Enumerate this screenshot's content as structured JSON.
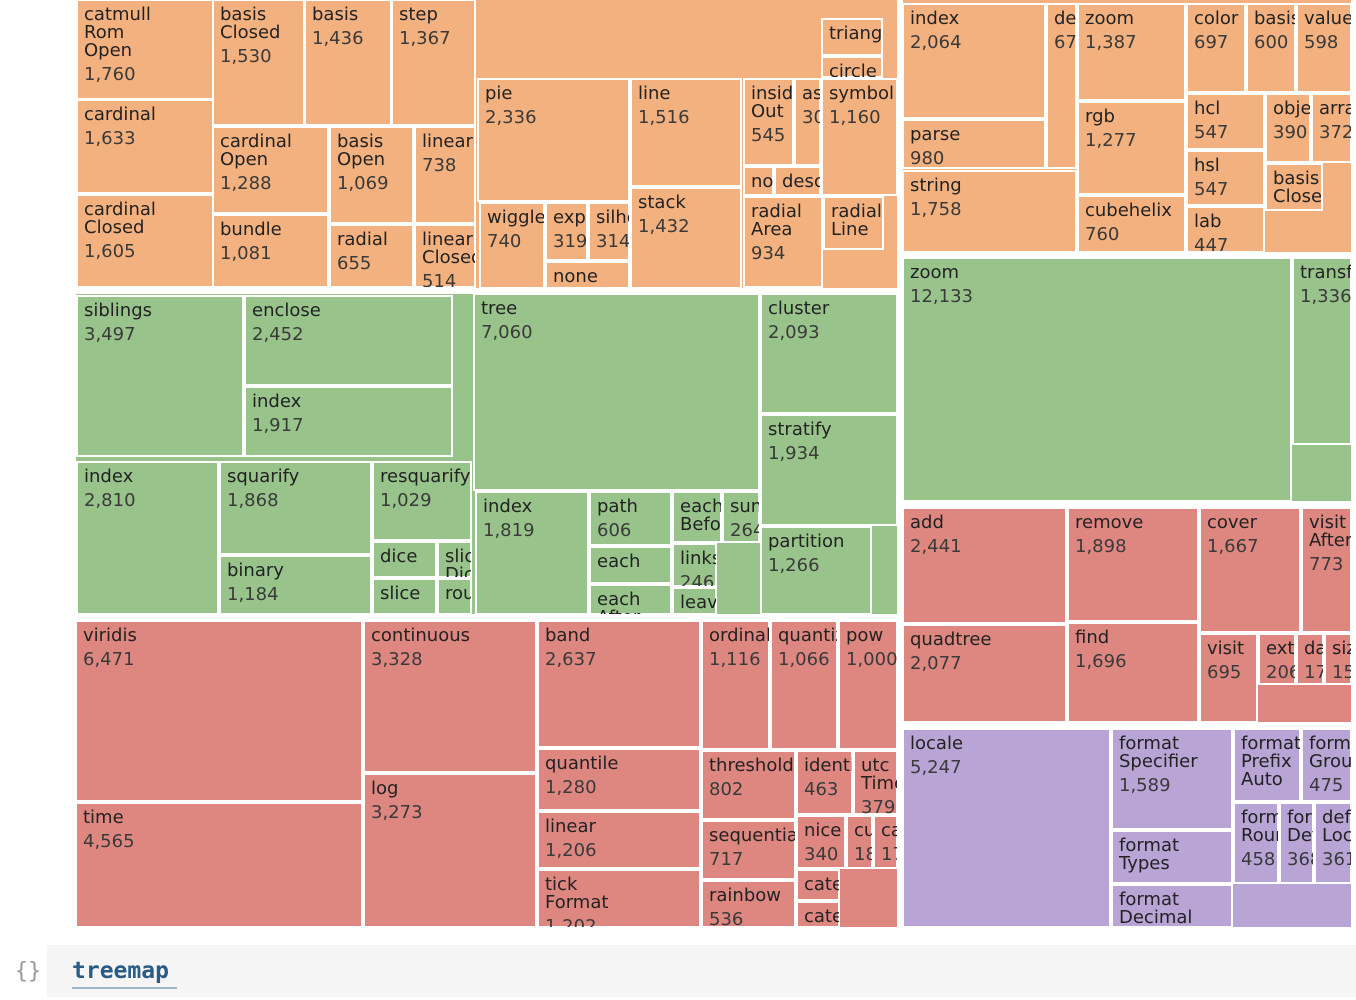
{
  "chart_data": {
    "type": "treemap",
    "series": [
      {
        "color": "#f3b17f",
        "labels": [
          "catmull Rom Open",
          "cardinal",
          "cardinal Closed",
          "basis Closed",
          "basis",
          "step",
          "cardinal Open",
          "basis Open",
          "linear",
          "bundle",
          "radial",
          "linear Closed",
          "pie",
          "line",
          "stack",
          "wiggle",
          "expand",
          "silhouette",
          "none",
          "inside Out",
          "ascending",
          "symbol",
          "radial Area",
          "radial Line",
          "triangle",
          "circle",
          "none",
          "descending"
        ],
        "values": [
          1760,
          1633,
          1605,
          1530,
          1436,
          1367,
          1288,
          1069,
          738,
          1081,
          655,
          514,
          2336,
          1516,
          1432,
          740,
          319,
          314,
          290,
          545,
          307,
          1160,
          934,
          440,
          310,
          170,
          120,
          180
        ],
        "value_labels": [
          "1,760",
          "1,633",
          "1,605",
          "1,530",
          "1,436",
          "1,367",
          "1,288",
          "1,069",
          "738",
          "1,081",
          "655",
          "514",
          "2,336",
          "1,516",
          "1,432",
          "740",
          "319",
          "314",
          null,
          "545",
          "307",
          "1,160",
          "934",
          null,
          null,
          null,
          null,
          null
        ]
      },
      {
        "color": "#f3b17f",
        "labels": [
          "index",
          "define",
          "parse",
          "string",
          "zoom",
          "rgb",
          "cubehelix",
          "color",
          "basis",
          "value",
          "hcl",
          "hsl",
          "lab",
          "object",
          "array",
          "basis Closed"
        ],
        "values": [
          2064,
          678,
          980,
          1758,
          1387,
          1277,
          760,
          697,
          600,
          598,
          547,
          547,
          447,
          390,
          372,
          340
        ],
        "value_labels": [
          "2,064",
          "678",
          "980",
          "1,758",
          "1,387",
          "1,277",
          "760",
          "697",
          "600",
          "598",
          "547",
          "547",
          "447",
          "390",
          "372",
          null
        ]
      },
      {
        "color": "#98c48b",
        "labels": [
          "siblings",
          "enclose",
          "index",
          "index",
          "squarify",
          "resquarify",
          "binary",
          "dice",
          "slice",
          "slice Dice",
          "round",
          "tree",
          "cluster",
          "stratify",
          "partition",
          "index",
          "path",
          "each",
          "each After",
          "each Before",
          "sum",
          "links",
          "leaves"
        ],
        "values": [
          3497,
          2452,
          1917,
          2810,
          1868,
          1029,
          1184,
          290,
          290,
          150,
          150,
          7060,
          2093,
          1934,
          1266,
          1819,
          606,
          390,
          310,
          300,
          264,
          246,
          200
        ],
        "value_labels": [
          "3,497",
          "2,452",
          "1,917",
          "2,810",
          "1,868",
          "1,029",
          "1,184",
          null,
          null,
          null,
          null,
          "7,060",
          "2,093",
          "1,934",
          "1,266",
          "1,819",
          "606",
          null,
          null,
          null,
          "264",
          "246",
          null
        ]
      },
      {
        "color": "#98c48b",
        "labels": [
          "zoom",
          "transform"
        ],
        "values": [
          12133,
          1336
        ],
        "value_labels": [
          "12,133",
          "1,336"
        ]
      },
      {
        "color": "#dd8780",
        "labels": [
          "viridis",
          "time",
          "continuous",
          "log",
          "band",
          "quantile",
          "linear",
          "tick Format",
          "ordinal",
          "quantize",
          "pow",
          "threshold",
          "sequential",
          "rainbow",
          "identity",
          "utc Time",
          "nice",
          "cubehelix",
          "category",
          "category10",
          "category20"
        ],
        "values": [
          6471,
          4565,
          3328,
          3273,
          2637,
          1280,
          1206,
          1202,
          1116,
          1066,
          1000,
          802,
          717,
          536,
          463,
          379,
          340,
          180,
          170,
          150,
          150
        ],
        "value_labels": [
          "6,471",
          "4,565",
          "3,328",
          "3,273",
          "2,637",
          "1,280",
          "1,206",
          "1,202",
          "1,116",
          "1,066",
          "1,000",
          "802",
          "717",
          "536",
          "463",
          "379",
          "340",
          "180",
          "170",
          null,
          null
        ]
      },
      {
        "color": "#dd8780",
        "labels": [
          "add",
          "remove",
          "cover",
          "visit After",
          "quadtree",
          "find",
          "visit",
          "extent",
          "data",
          "size"
        ],
        "values": [
          2441,
          1898,
          1667,
          773,
          2077,
          1696,
          695,
          206,
          172,
          150
        ],
        "value_labels": [
          "2,441",
          "1,898",
          "1,667",
          "773",
          "2,077",
          "1,696",
          "695",
          "206",
          "172",
          "150"
        ]
      },
      {
        "color": "#b8a4d5",
        "labels": [
          "locale",
          "format Specifier",
          "format Types",
          "format Decimal",
          "format Prefix Auto",
          "format Group",
          "format Rounded",
          "format Default",
          "default Locale"
        ],
        "values": [
          5247,
          1589,
          830,
          900,
          640,
          475,
          458,
          368,
          361
        ],
        "value_labels": [
          "5,247",
          "1,589",
          null,
          null,
          null,
          "475",
          "458",
          "368",
          "361"
        ]
      }
    ]
  },
  "cell": {
    "icon": "{}",
    "name": "treemap"
  }
}
